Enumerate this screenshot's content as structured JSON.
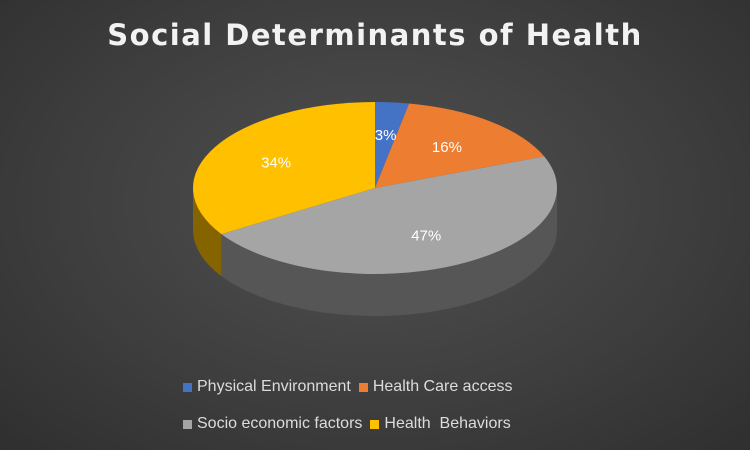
{
  "chart_data": {
    "type": "pie",
    "title": "Social Determinants of Health",
    "categories": [
      "Physical Environment",
      "Health Care access",
      "Socio economic factors",
      "Health  Behaviors"
    ],
    "values": [
      3,
      16,
      47,
      34
    ],
    "data_labels": [
      "3%",
      "16%",
      "47%",
      "34%"
    ],
    "colors": [
      "#4472c4",
      "#ed7d31",
      "#a5a5a5",
      "#ffc000"
    ],
    "style": "3d",
    "legend_position": "bottom"
  }
}
